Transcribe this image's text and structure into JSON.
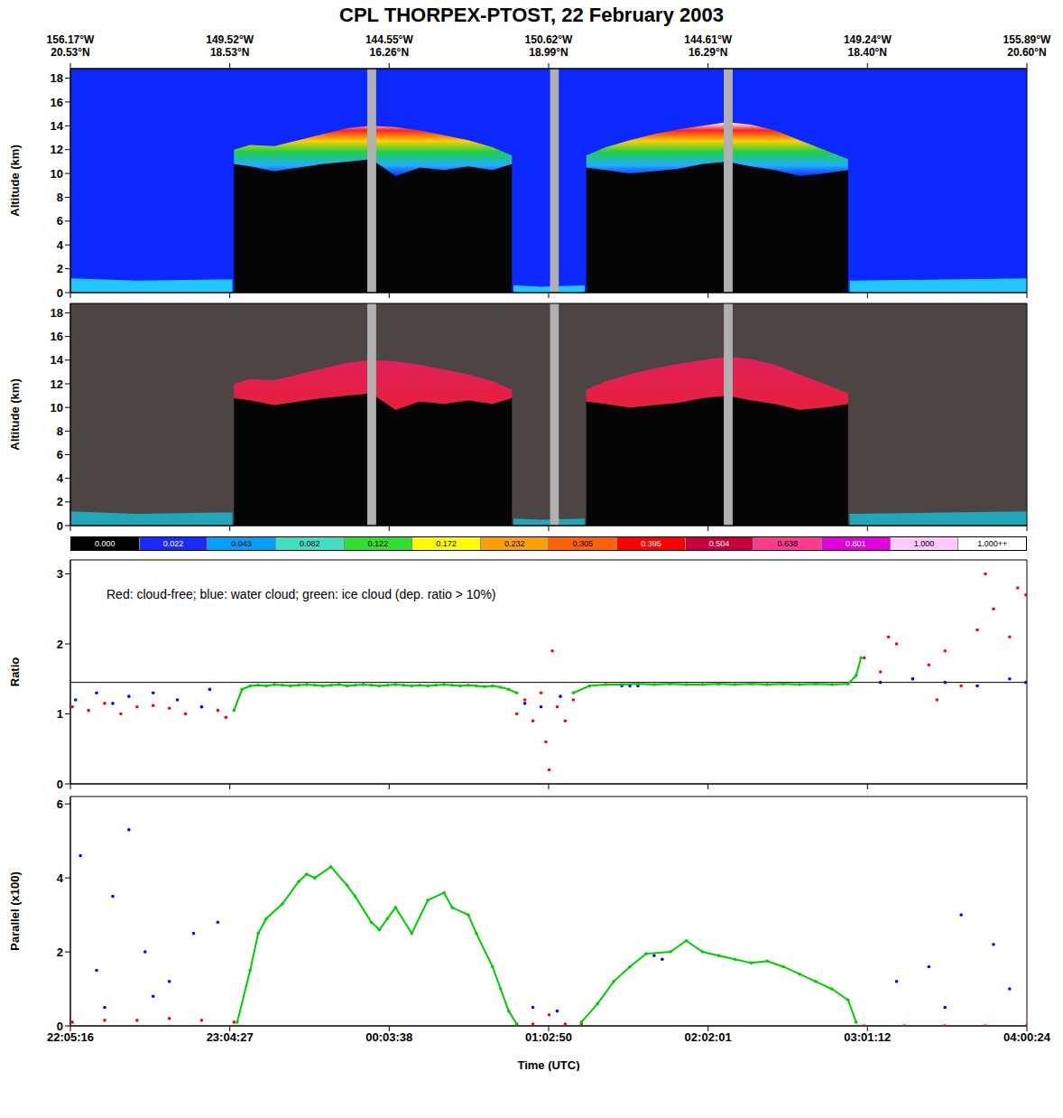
{
  "title": "CPL THORPEX-PTOST, 22 February 2003",
  "positions": {
    "ticks": [
      {
        "value": 22.0878,
        "lon": "156.17°W",
        "lat": "20.53°N"
      },
      {
        "value": 23.0742,
        "lon": "149.52°W",
        "lat": "18.53°N"
      },
      {
        "value": 24.0606,
        "lon": "144.55°W",
        "lat": "16.26°N"
      },
      {
        "value": 25.0472,
        "lon": "150.62°W",
        "lat": "18.99°N"
      },
      {
        "value": 26.0336,
        "lon": "144.61°W",
        "lat": "16.29°N"
      },
      {
        "value": 27.02,
        "lon": "149.24°W",
        "lat": "18.40°N"
      },
      {
        "value": 28.0067,
        "lon": "155.89°W",
        "lat": "20.60°N"
      }
    ]
  },
  "chart_data": [
    {
      "type": "curtain",
      "y_label": "Altitude (km)",
      "tick_labels": "y",
      "xlim": [
        22.0878,
        28.0067
      ],
      "xticks": [
        {
          "value": 22.0878,
          "label": "22:05:16"
        },
        {
          "value": 23.0742,
          "label": "23:04:27"
        },
        {
          "value": 24.0606,
          "label": "00:03:38"
        },
        {
          "value": 25.0472,
          "label": "01:02:50"
        },
        {
          "value": 26.0336,
          "label": "02:02:01"
        },
        {
          "value": 27.02,
          "label": "03:01:12"
        },
        {
          "value": 28.0067,
          "label": "04:00:24"
        }
      ],
      "ylim": [
        0,
        18.8
      ],
      "yticks": [
        0,
        2,
        4,
        6,
        8,
        10,
        12,
        14,
        16,
        18
      ],
      "x": [
        22.09,
        22.5,
        23.0,
        23.09,
        23.1,
        23.2,
        23.35,
        23.5,
        23.65,
        23.8,
        23.95,
        24.1,
        24.25,
        24.4,
        24.55,
        24.7,
        24.82,
        24.83,
        25.0,
        25.27,
        25.28,
        25.4,
        25.55,
        25.7,
        25.85,
        26.0,
        26.15,
        26.3,
        26.45,
        26.6,
        26.75,
        26.9,
        26.91,
        27.5,
        28.0067
      ],
      "cloud_top": [
        null,
        null,
        null,
        null,
        12.0,
        12.4,
        12.3,
        12.8,
        13.3,
        13.8,
        14.0,
        13.9,
        13.6,
        13.2,
        12.8,
        12.2,
        11.5,
        null,
        null,
        null,
        11.5,
        12.2,
        12.8,
        13.3,
        13.7,
        14.0,
        14.3,
        14.1,
        13.6,
        12.8,
        12.0,
        11.2,
        null,
        null,
        null
      ],
      "cloud_base": [
        null,
        null,
        null,
        null,
        10.8,
        10.6,
        10.2,
        10.5,
        10.8,
        11.0,
        11.2,
        9.8,
        10.5,
        10.3,
        10.6,
        10.3,
        10.8,
        null,
        null,
        null,
        10.5,
        10.3,
        10.0,
        10.2,
        10.4,
        10.8,
        11.0,
        10.6,
        10.3,
        9.8,
        10.0,
        10.3,
        null,
        null,
        null
      ],
      "aerosol_top": [
        1.2,
        1.0,
        1.1,
        1.1,
        null,
        null,
        null,
        null,
        null,
        null,
        null,
        null,
        null,
        null,
        null,
        null,
        null,
        0.6,
        0.5,
        0.6,
        null,
        null,
        null,
        null,
        null,
        null,
        null,
        null,
        null,
        null,
        null,
        null,
        1.0,
        1.1,
        1.2
      ],
      "data_gaps": [
        [
          23.925,
          23.98
        ],
        [
          25.056,
          25.11
        ],
        [
          26.131,
          26.186
        ]
      ]
    },
    {
      "type": "curtain",
      "y_label": "Altitude (km)",
      "tick_labels": "y",
      "xlim": [
        22.0878,
        28.0067
      ],
      "xticks": [
        {
          "value": 22.0878,
          "label": "22:05:16"
        },
        {
          "value": 23.0742,
          "label": "23:04:27"
        },
        {
          "value": 24.0606,
          "label": "00:03:38"
        },
        {
          "value": 25.0472,
          "label": "01:02:50"
        },
        {
          "value": 26.0336,
          "label": "02:02:01"
        },
        {
          "value": 27.02,
          "label": "03:01:12"
        },
        {
          "value": 28.0067,
          "label": "04:00:24"
        }
      ],
      "ylim": [
        0,
        18.8
      ],
      "yticks": [
        0,
        2,
        4,
        6,
        8,
        10,
        12,
        14,
        16,
        18
      ],
      "x": [
        22.09,
        22.5,
        23.0,
        23.09,
        23.1,
        23.2,
        23.35,
        23.5,
        23.65,
        23.8,
        23.95,
        24.1,
        24.25,
        24.4,
        24.55,
        24.7,
        24.82,
        24.83,
        25.0,
        25.27,
        25.28,
        25.4,
        25.55,
        25.7,
        25.85,
        26.0,
        26.15,
        26.3,
        26.45,
        26.6,
        26.75,
        26.9,
        26.91,
        27.5,
        28.0067
      ],
      "cloud_top": [
        null,
        null,
        null,
        null,
        12.0,
        12.4,
        12.3,
        12.8,
        13.3,
        13.8,
        14.0,
        13.9,
        13.6,
        13.2,
        12.8,
        12.2,
        11.5,
        null,
        null,
        null,
        11.5,
        12.2,
        12.8,
        13.3,
        13.7,
        14.0,
        14.3,
        14.1,
        13.6,
        12.8,
        12.0,
        11.2,
        null,
        null,
        null
      ],
      "cloud_base": [
        null,
        null,
        null,
        null,
        10.8,
        10.6,
        10.2,
        10.5,
        10.8,
        11.0,
        11.2,
        9.8,
        10.5,
        10.3,
        10.6,
        10.3,
        10.8,
        null,
        null,
        null,
        10.5,
        10.3,
        10.0,
        10.2,
        10.4,
        10.8,
        11.0,
        10.6,
        10.3,
        9.8,
        10.0,
        10.3,
        null,
        null,
        null
      ],
      "aerosol_top": [
        1.2,
        1.0,
        1.1,
        1.1,
        null,
        null,
        null,
        null,
        null,
        null,
        null,
        null,
        null,
        null,
        null,
        null,
        null,
        0.6,
        0.5,
        0.6,
        null,
        null,
        null,
        null,
        null,
        null,
        null,
        null,
        null,
        null,
        null,
        null,
        1.0,
        1.1,
        1.2
      ],
      "data_gaps": [
        [
          23.925,
          23.98
        ],
        [
          25.056,
          25.11
        ],
        [
          26.131,
          26.186
        ]
      ],
      "colorbar": {
        "ticks": [
          {
            "value": 0,
            "label": "0.000"
          },
          {
            "value": 0.022,
            "label": "0.022"
          },
          {
            "value": 0.043,
            "label": "0.043"
          },
          {
            "value": 0.082,
            "label": "0.082"
          },
          {
            "value": 0.122,
            "label": "0.122"
          },
          {
            "value": 0.172,
            "label": "0.172"
          },
          {
            "value": 0.232,
            "label": "0.232"
          },
          {
            "value": 0.305,
            "label": "0.305"
          },
          {
            "value": 0.395,
            "label": "0.395"
          },
          {
            "value": 0.504,
            "label": "0.504"
          },
          {
            "value": 0.638,
            "label": "0.638"
          },
          {
            "value": 0.801,
            "label": "0.801"
          },
          {
            "value": 1,
            "label": "1.000"
          },
          {
            "value": 1,
            "label": "1.000++"
          }
        ],
        "colors": [
          "#000000",
          "#1a2aff",
          "#00a0ff",
          "#40e0c0",
          "#30e030",
          "#ffff00",
          "#ffa000",
          "#ff6000",
          "#ff0000",
          "#c8003c",
          "#ff3c8c",
          "#e000e0",
          "#ffc8ff",
          "#ffffff"
        ]
      }
    },
    {
      "type": "scatter",
      "y_label": "Ratio",
      "tick_labels": "y",
      "annotation": "Red: cloud-free;  blue: water cloud;  green: ice cloud (dep. ratio > 10%)",
      "hline": 1.45,
      "xlim": [
        22.0878,
        28.0067
      ],
      "xticks": [
        {
          "value": 22.0878,
          "label": "22:05:16"
        },
        {
          "value": 23.0742,
          "label": "23:04:27"
        },
        {
          "value": 24.0606,
          "label": "00:03:38"
        },
        {
          "value": 25.0472,
          "label": "01:02:50"
        },
        {
          "value": 26.0336,
          "label": "02:02:01"
        },
        {
          "value": 27.02,
          "label": "03:01:12"
        },
        {
          "value": 28.0067,
          "label": "04:00:24"
        }
      ],
      "ylim": [
        0,
        3.2
      ],
      "yticks": [
        0,
        1,
        2,
        3
      ],
      "series": [
        {
          "color": "#ff0000",
          "marker": "dot",
          "x": [
            22.1,
            22.2,
            22.3,
            22.4,
            22.5,
            22.6,
            22.7,
            22.8,
            22.9,
            23.0,
            23.05,
            24.85,
            24.9,
            24.95,
            25.0,
            25.03,
            25.05,
            25.07,
            25.1,
            25.15,
            25.2,
            27.0,
            27.1,
            27.15,
            27.2,
            27.3,
            27.4,
            27.45,
            27.5,
            27.6,
            27.7,
            27.75,
            27.8,
            27.9,
            27.95,
            28.0
          ],
          "values": [
            1.1,
            1.05,
            1.15,
            1.0,
            1.1,
            1.12,
            1.08,
            1.0,
            1.1,
            1.05,
            0.95,
            1.0,
            1.2,
            0.9,
            1.3,
            0.6,
            0.2,
            1.9,
            1.1,
            0.9,
            1.2,
            1.8,
            1.6,
            2.1,
            2.0,
            1.5,
            1.7,
            1.2,
            1.9,
            1.4,
            2.2,
            3.0,
            2.5,
            2.1,
            2.8,
            2.7
          ]
        },
        {
          "color": "#0000ff",
          "marker": "dot",
          "x": [
            22.12,
            22.25,
            22.35,
            22.45,
            22.6,
            22.75,
            22.9,
            22.95,
            24.9,
            25.0,
            25.12,
            25.5,
            25.55,
            25.6,
            27.1,
            27.3,
            27.5,
            27.7,
            27.9,
            28.0
          ],
          "values": [
            1.2,
            1.3,
            1.15,
            1.25,
            1.3,
            1.2,
            1.1,
            1.35,
            1.15,
            1.1,
            1.25,
            1.4,
            1.4,
            1.4,
            1.45,
            1.5,
            1.45,
            1.4,
            1.5,
            1.45
          ]
        },
        {
          "color": "#00cc00",
          "marker": "dot",
          "line_style": "solid",
          "x": [
            23.1,
            23.15,
            23.2,
            23.25,
            23.3,
            23.35,
            23.4,
            23.45,
            23.5,
            23.55,
            23.6,
            23.65,
            23.7,
            23.75,
            23.8,
            23.85,
            23.9,
            23.95,
            24.0,
            24.05,
            24.1,
            24.15,
            24.2,
            24.25,
            24.3,
            24.35,
            24.4,
            24.45,
            24.5,
            24.55,
            24.6,
            24.65,
            24.7,
            24.75,
            24.8,
            24.85
          ],
          "values": [
            1.05,
            1.35,
            1.4,
            1.41,
            1.4,
            1.42,
            1.41,
            1.4,
            1.41,
            1.42,
            1.41,
            1.4,
            1.41,
            1.42,
            1.4,
            1.41,
            1.42,
            1.41,
            1.4,
            1.41,
            1.42,
            1.41,
            1.4,
            1.41,
            1.4,
            1.41,
            1.42,
            1.41,
            1.4,
            1.41,
            1.4,
            1.39,
            1.4,
            1.38,
            1.35,
            1.3
          ]
        },
        {
          "color": "#00cc00",
          "marker": "dot",
          "line_style": "solid",
          "x": [
            25.2,
            25.3,
            25.4,
            25.5,
            25.6,
            25.7,
            25.8,
            25.9,
            26.0,
            26.1,
            26.2,
            26.3,
            26.4,
            26.5,
            26.6,
            26.7,
            26.8,
            26.9,
            26.95,
            26.98
          ],
          "values": [
            1.3,
            1.4,
            1.42,
            1.42,
            1.43,
            1.42,
            1.43,
            1.42,
            1.42,
            1.43,
            1.42,
            1.43,
            1.42,
            1.43,
            1.42,
            1.43,
            1.42,
            1.43,
            1.55,
            1.8
          ]
        }
      ]
    },
    {
      "type": "scatter",
      "y_label": "Parallel (x100)",
      "x_label": "Time (UTC)",
      "tick_labels": true,
      "xlim": [
        22.0878,
        28.0067
      ],
      "xticks": [
        {
          "value": 22.0878,
          "label": "22:05:16"
        },
        {
          "value": 23.0742,
          "label": "23:04:27"
        },
        {
          "value": 24.0606,
          "label": "00:03:38"
        },
        {
          "value": 25.0472,
          "label": "01:02:50"
        },
        {
          "value": 26.0336,
          "label": "02:02:01"
        },
        {
          "value": 27.02,
          "label": "03:01:12"
        },
        {
          "value": 28.0067,
          "label": "04:00:24"
        }
      ],
      "ylim": [
        0,
        6.2
      ],
      "yticks": [
        0,
        2,
        4,
        6
      ],
      "series": [
        {
          "color": "#ff0000",
          "marker": "dot",
          "x": [
            22.1,
            22.3,
            22.5,
            22.7,
            22.9,
            23.1,
            24.85,
            24.95,
            25.05,
            25.15,
            25.25,
            27.0,
            27.25,
            27.5,
            27.75,
            28.0
          ],
          "values": [
            0.1,
            0.15,
            0.15,
            0.2,
            0.15,
            0.1,
            0.05,
            0.05,
            0.3,
            0.05,
            0.05,
            0.0,
            0.0,
            0.0,
            0.0,
            0.0
          ]
        },
        {
          "color": "#0000ff",
          "marker": "dot",
          "x": [
            22.15,
            22.25,
            22.3,
            22.35,
            22.45,
            22.55,
            22.6,
            22.7,
            22.85,
            23.0,
            24.95,
            25.1,
            25.7,
            25.75,
            27.2,
            27.4,
            27.5,
            27.6,
            27.8,
            27.9
          ],
          "values": [
            4.6,
            1.5,
            0.5,
            3.5,
            5.3,
            2.0,
            0.8,
            1.2,
            2.5,
            2.8,
            0.5,
            0.4,
            1.9,
            1.8,
            1.2,
            1.6,
            0.5,
            3.0,
            2.2,
            1.0
          ]
        },
        {
          "color": "#00cc00",
          "marker": "dot",
          "line_style": "solid",
          "x": [
            23.12,
            23.2,
            23.25,
            23.3,
            23.4,
            23.5,
            23.55,
            23.6,
            23.7,
            23.8,
            23.85,
            23.95,
            24.0,
            24.05,
            24.1,
            24.2,
            24.3,
            24.4,
            24.45,
            24.55,
            24.6,
            24.7,
            24.75,
            24.8,
            24.85
          ],
          "values": [
            0.1,
            1.5,
            2.5,
            2.9,
            3.3,
            3.9,
            4.1,
            4.0,
            4.3,
            3.8,
            3.5,
            2.8,
            2.6,
            2.9,
            3.2,
            2.5,
            3.4,
            3.6,
            3.2,
            3.0,
            2.5,
            1.6,
            1.0,
            0.4,
            0.05
          ]
        },
        {
          "color": "#00cc00",
          "marker": "dot",
          "line_style": "solid",
          "x": [
            25.25,
            25.35,
            25.45,
            25.55,
            25.65,
            25.8,
            25.9,
            26.0,
            26.1,
            26.2,
            26.3,
            26.4,
            26.5,
            26.6,
            26.7,
            26.8,
            26.9,
            26.95
          ],
          "values": [
            0.1,
            0.6,
            1.2,
            1.6,
            1.95,
            2.0,
            2.3,
            2.0,
            1.9,
            1.8,
            1.7,
            1.75,
            1.6,
            1.4,
            1.2,
            1.0,
            0.7,
            0.1
          ]
        }
      ]
    }
  ]
}
